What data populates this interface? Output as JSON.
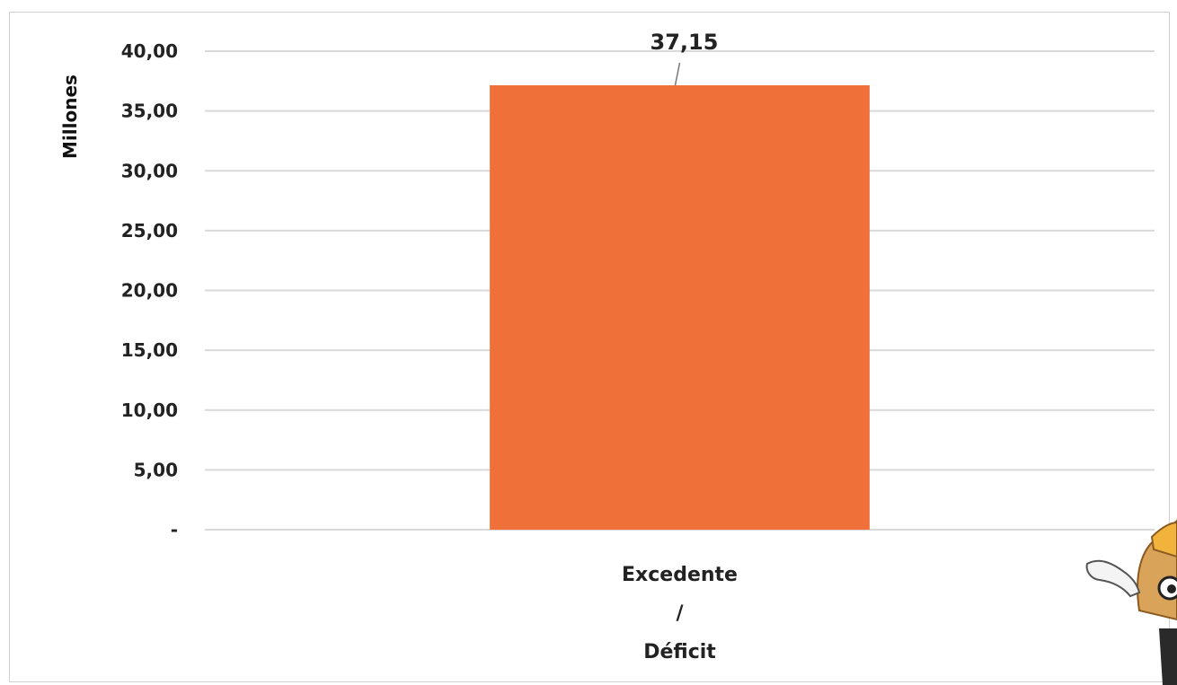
{
  "chart_data": {
    "type": "bar",
    "categories": [
      "Excedente / Déficit"
    ],
    "category_lines": [
      "Excedente",
      "/",
      "Déficit"
    ],
    "values": [
      37.15
    ],
    "data_labels": [
      "37,15"
    ],
    "title": "",
    "xlabel": "",
    "ylabel": "Millones",
    "ylim": [
      0,
      40
    ],
    "y_ticks": [
      0,
      5,
      10,
      15,
      20,
      25,
      30,
      35,
      40
    ],
    "y_tick_labels": [
      "-",
      "5,00",
      "10,00",
      "15,00",
      "20,00",
      "25,00",
      "30,00",
      "35,00",
      "40,00"
    ],
    "grid": true,
    "legend": "none",
    "bar_color": "#f0703a",
    "grid_color": "#d9d9d9"
  },
  "mascot": {
    "icon": "construction-worker-mascot-icon"
  }
}
